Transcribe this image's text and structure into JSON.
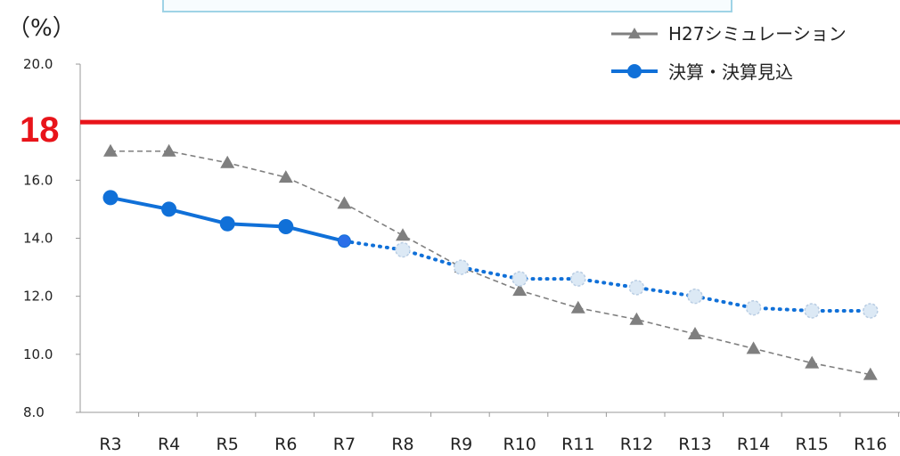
{
  "chart_data": {
    "type": "line",
    "unit_label": "（%）",
    "categories": [
      "R3",
      "R4",
      "R5",
      "R6",
      "R7",
      "R8",
      "R9",
      "R10",
      "R11",
      "R12",
      "R13",
      "R14",
      "R15",
      "R16"
    ],
    "ylim": [
      8.0,
      20.0
    ],
    "yticks": [
      "8.0",
      "10.0",
      "12.0",
      "14.0",
      "16.0",
      "20.0"
    ],
    "ytick_values": [
      8,
      10,
      12,
      14,
      16,
      20
    ],
    "reference_line": {
      "value": 18,
      "label": "18",
      "color": "#e8141a"
    },
    "series": [
      {
        "name": "H27シミュレーション",
        "color": "#7f7f7f",
        "marker": "triangle",
        "style": "dashed",
        "values": [
          17.0,
          17.0,
          16.6,
          16.1,
          15.2,
          14.1,
          13.0,
          12.2,
          11.6,
          11.2,
          10.7,
          10.2,
          9.7,
          9.3
        ]
      },
      {
        "name": "決算・決算見込",
        "color": "#1070d8",
        "marker": "circle",
        "style": "solid-then-dotted",
        "solid_until": "R7",
        "values": [
          15.4,
          15.0,
          14.5,
          14.4,
          13.9,
          13.6,
          13.0,
          12.6,
          12.6,
          12.3,
          12.0,
          11.6,
          11.5,
          11.5
        ]
      }
    ],
    "legend_position": "top-right",
    "grid": false
  }
}
